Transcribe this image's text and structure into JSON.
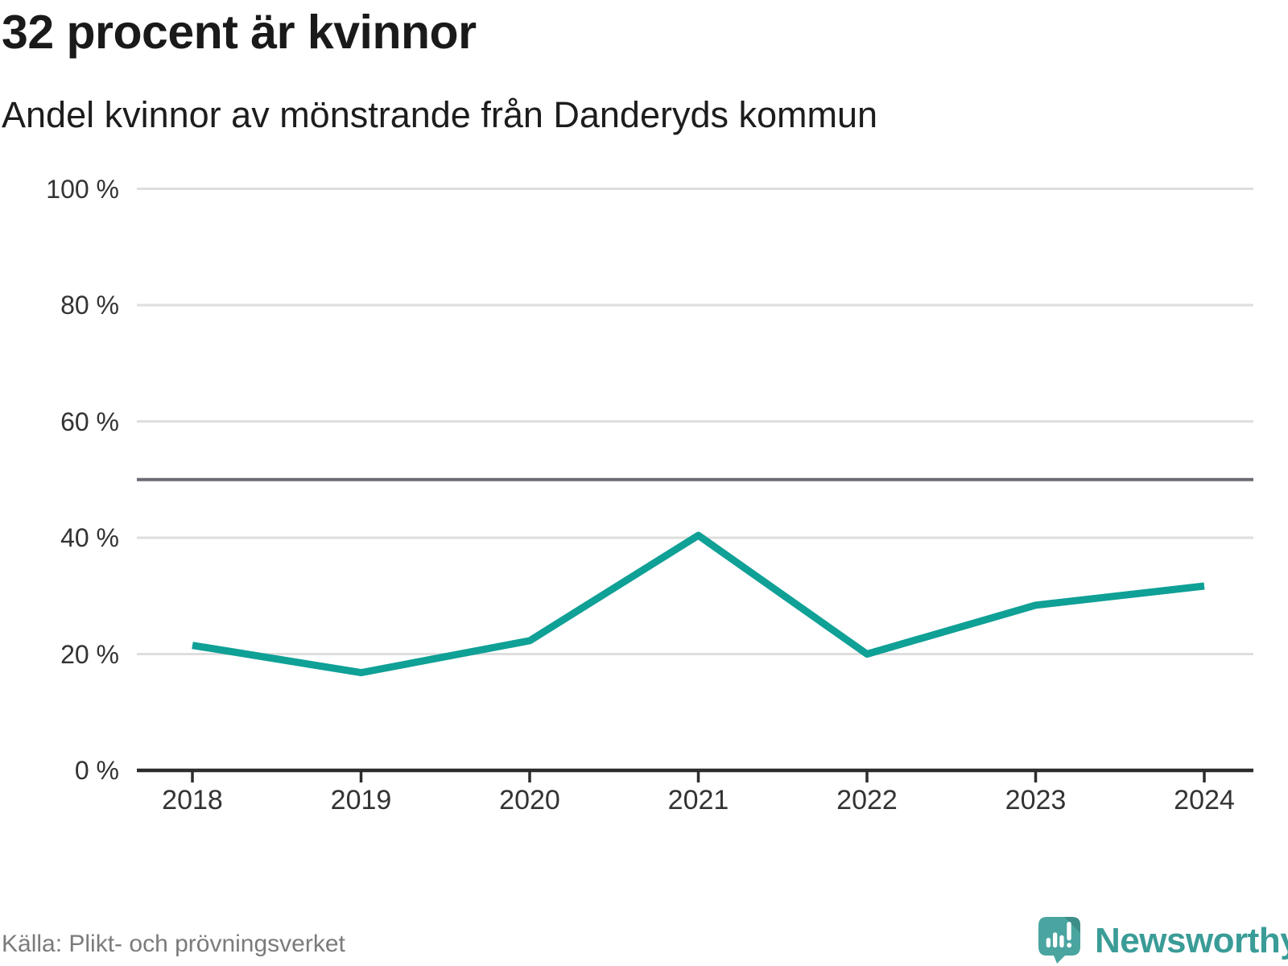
{
  "header": {
    "title": "32 procent är kvinnor",
    "subtitle": "Andel kvinnor av mönstrande från Danderyds kommun"
  },
  "footer": {
    "source": "Källa: Plikt- och prövningsverket",
    "brand_name": "Newsworthy"
  },
  "icons": {
    "logo": "newsworthy-speech-bubble-barchart-icon"
  },
  "colors": {
    "line": "#0fa096",
    "reference_line": "#6b6b74",
    "gridline": "#dedede",
    "axis": "#2d2d2d",
    "logo_bubble": "#4aa5a0",
    "logo_fold": "#3d8e89",
    "brand_text": "#3a9c97"
  },
  "chart_data": {
    "type": "line",
    "title": "32 procent är kvinnor",
    "subtitle": "Andel kvinnor av mönstrande från Danderyds kommun",
    "x": [
      2018,
      2019,
      2020,
      2021,
      2022,
      2023,
      2024
    ],
    "series": [
      {
        "name": "Andel kvinnor av mönstrande",
        "values": [
          21.5,
          16.8,
          22.3,
          40.4,
          20.0,
          28.4,
          31.7
        ]
      }
    ],
    "unit": "%",
    "ylim": [
      0,
      100
    ],
    "y_tick_values": [
      0,
      20,
      40,
      60,
      80,
      100
    ],
    "y_ticks": [
      "0 %",
      "20 %",
      "40 %",
      "60 %",
      "80 %",
      "100 %"
    ],
    "x_ticks": [
      "2018",
      "2019",
      "2020",
      "2021",
      "2022",
      "2023",
      "2024"
    ],
    "reference_line": 50,
    "grid": true,
    "legend": "none",
    "line_color": "#0fa096",
    "reference_color": "#6b6b74",
    "grid_color": "#dedede",
    "axis_color": "#2d2d2d"
  }
}
